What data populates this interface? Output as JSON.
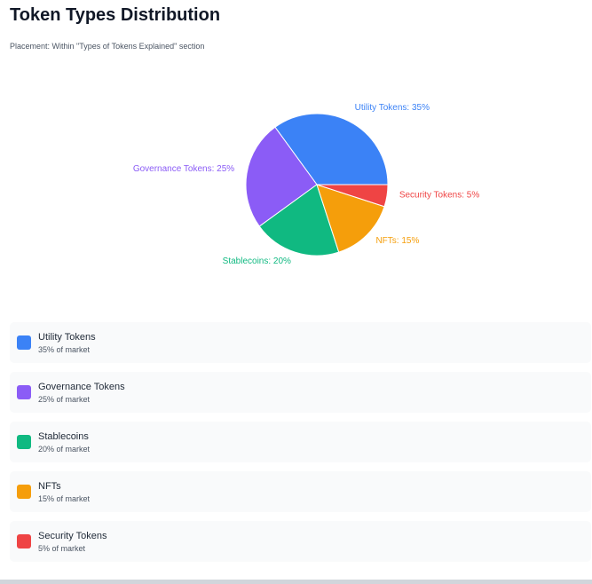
{
  "title": "Token Types Distribution",
  "subtitle": "Placement: Within \"Types of Tokens Explained\" section",
  "chart_data": {
    "type": "pie",
    "categories": [
      "Utility Tokens",
      "Governance Tokens",
      "Stablecoins",
      "NFTs",
      "Security Tokens"
    ],
    "values": [
      35,
      25,
      20,
      15,
      5
    ],
    "colors": [
      "#3b82f6",
      "#8b5cf6",
      "#10b981",
      "#f59e0b",
      "#ef4444"
    ],
    "labels": [
      "Utility Tokens: 35%",
      "Governance Tokens: 25%",
      "Stablecoins: 20%",
      "NFTs: 15%",
      "Security Tokens: 5%"
    ]
  },
  "legend": [
    {
      "name": "Utility Tokens",
      "share": "35% of market"
    },
    {
      "name": "Governance Tokens",
      "share": "25% of market"
    },
    {
      "name": "Stablecoins",
      "share": "20% of market"
    },
    {
      "name": "NFTs",
      "share": "15% of market"
    },
    {
      "name": "Security Tokens",
      "share": "5% of market"
    }
  ]
}
